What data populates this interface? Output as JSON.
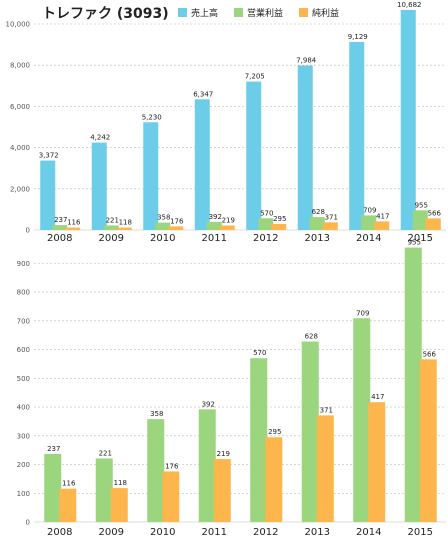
{
  "title": "トレファク (3093)",
  "colors": {
    "revenue": "#6ccde9",
    "operating": "#9bd67e",
    "net": "#fcb64b",
    "grid": "#bdbdbd",
    "axis": "#555555"
  },
  "chart_data": [
    {
      "type": "bar",
      "categories": [
        "2008",
        "2009",
        "2010",
        "2011",
        "2012",
        "2013",
        "2014",
        "2015"
      ],
      "series": [
        {
          "name": "売上高",
          "values": [
            3372,
            4242,
            5230,
            6347,
            7205,
            7984,
            9129,
            10682
          ]
        },
        {
          "name": "営業利益",
          "values": [
            237,
            221,
            358,
            392,
            570,
            628,
            709,
            955
          ]
        },
        {
          "name": "純利益",
          "values": [
            116,
            118,
            176,
            219,
            295,
            371,
            417,
            566
          ]
        }
      ],
      "value_labels": {
        "売上高": [
          "3,372",
          "4,242",
          "5,230",
          "6,347",
          "7,205",
          "7,984",
          "9,129",
          "10,682"
        ],
        "営業利益": [
          "237",
          "221",
          "358",
          "392",
          "570",
          "628",
          "709",
          "955"
        ],
        "純利益": [
          "116",
          "118",
          "176",
          "219",
          "295",
          "371",
          "417",
          "566"
        ]
      },
      "ylim": [
        0,
        10000
      ],
      "yticks": [
        0,
        2000,
        4000,
        6000,
        8000,
        10000
      ],
      "ytick_labels": [
        "0",
        "2,000",
        "4,000",
        "6,000",
        "8,000",
        "10,000"
      ],
      "grid": true,
      "legend": "top"
    },
    {
      "type": "bar",
      "categories": [
        "2008",
        "2009",
        "2010",
        "2011",
        "2012",
        "2013",
        "2014",
        "2015"
      ],
      "series": [
        {
          "name": "営業利益",
          "values": [
            237,
            221,
            358,
            392,
            570,
            628,
            709,
            955
          ]
        },
        {
          "name": "純利益",
          "values": [
            116,
            118,
            176,
            219,
            295,
            371,
            417,
            566
          ]
        }
      ],
      "value_labels": {
        "営業利益": [
          "237",
          "221",
          "358",
          "392",
          "570",
          "628",
          "709",
          "955"
        ],
        "純利益": [
          "116",
          "118",
          "176",
          "219",
          "295",
          "371",
          "417",
          "566"
        ]
      },
      "ylim": [
        0,
        950
      ],
      "yticks": [
        0,
        100,
        200,
        300,
        400,
        500,
        600,
        700,
        800,
        900
      ],
      "ytick_labels": [
        "0",
        "100",
        "200",
        "300",
        "400",
        "500",
        "600",
        "700",
        "800",
        "900"
      ],
      "grid": true
    }
  ]
}
